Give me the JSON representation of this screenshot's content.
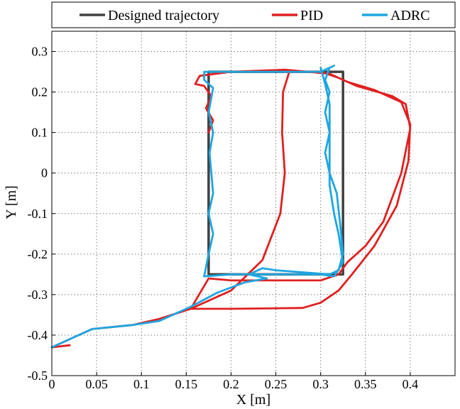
{
  "chart_data": {
    "type": "line",
    "xlabel": "X [m]",
    "ylabel": "Y [m]",
    "xlim": [
      0,
      0.45
    ],
    "ylim": [
      -0.5,
      0.35
    ],
    "xticks": [
      "0",
      "0.05",
      "0.1",
      "0.15",
      "0.2",
      "0.25",
      "0.3",
      "0.35",
      "0.4"
    ],
    "xtick_values": [
      0,
      0.05,
      0.1,
      0.15,
      0.2,
      0.25,
      0.3,
      0.35,
      0.4
    ],
    "yticks": [
      "0.3",
      "0.2",
      "0.1",
      "0",
      "-0.1",
      "-0.2",
      "-0.3",
      "-0.4",
      "-0.5"
    ],
    "ytick_values": [
      0.3,
      0.2,
      0.1,
      0,
      -0.1,
      -0.2,
      -0.3,
      -0.4,
      -0.5
    ],
    "grid": true,
    "legend_position": "top",
    "series": [
      {
        "name": "Designed trajectory",
        "color": "#404040",
        "points": [
          [
            0.175,
            0.25
          ],
          [
            0.325,
            0.25
          ],
          [
            0.325,
            -0.25
          ],
          [
            0.175,
            -0.25
          ],
          [
            0.175,
            0.25
          ]
        ]
      },
      {
        "name": "PID",
        "color": "#e02020",
        "points": [
          [
            0.02,
            -0.425
          ],
          [
            0.0,
            -0.43
          ],
          [
            0.02,
            -0.41
          ],
          [
            0.045,
            -0.385
          ],
          [
            0.09,
            -0.375
          ],
          [
            0.12,
            -0.36
          ],
          [
            0.155,
            -0.335
          ],
          [
            0.2,
            -0.29
          ],
          [
            0.235,
            -0.215
          ],
          [
            0.255,
            -0.1
          ],
          [
            0.26,
            0.0
          ],
          [
            0.257,
            0.1
          ],
          [
            0.258,
            0.2
          ],
          [
            0.265,
            0.25
          ],
          [
            0.3,
            0.25
          ],
          [
            0.32,
            0.235
          ],
          [
            0.34,
            0.215
          ],
          [
            0.38,
            0.19
          ],
          [
            0.395,
            0.17
          ],
          [
            0.4,
            0.11
          ],
          [
            0.39,
            0.0
          ],
          [
            0.37,
            -0.12
          ],
          [
            0.35,
            -0.18
          ],
          [
            0.33,
            -0.22
          ],
          [
            0.32,
            -0.25
          ],
          [
            0.3,
            -0.265
          ],
          [
            0.25,
            -0.265
          ],
          [
            0.2,
            -0.265
          ],
          [
            0.175,
            -0.26
          ],
          [
            0.155,
            -0.335
          ],
          [
            0.2,
            -0.335
          ],
          [
            0.28,
            -0.333
          ],
          [
            0.3,
            -0.32
          ],
          [
            0.32,
            -0.29
          ],
          [
            0.335,
            -0.25
          ],
          [
            0.36,
            -0.18
          ],
          [
            0.385,
            -0.08
          ],
          [
            0.398,
            0.03
          ],
          [
            0.4,
            0.12
          ],
          [
            0.39,
            0.175
          ],
          [
            0.36,
            0.205
          ],
          [
            0.33,
            0.225
          ],
          [
            0.31,
            0.245
          ],
          [
            0.26,
            0.255
          ],
          [
            0.2,
            0.25
          ],
          [
            0.165,
            0.24
          ],
          [
            0.16,
            0.22
          ],
          [
            0.17,
            0.215
          ],
          [
            0.178,
            0.19
          ],
          [
            0.172,
            0.16
          ],
          [
            0.18,
            0.13
          ],
          [
            0.175,
            0.1
          ]
        ]
      },
      {
        "name": "ADRC",
        "color": "#1ea6e0",
        "points": [
          [
            0.0,
            -0.43
          ],
          [
            0.02,
            -0.41
          ],
          [
            0.045,
            -0.385
          ],
          [
            0.09,
            -0.375
          ],
          [
            0.12,
            -0.365
          ],
          [
            0.155,
            -0.33
          ],
          [
            0.185,
            -0.295
          ],
          [
            0.215,
            -0.27
          ],
          [
            0.24,
            -0.26
          ],
          [
            0.22,
            -0.25
          ],
          [
            0.235,
            -0.235
          ],
          [
            0.25,
            -0.24
          ],
          [
            0.28,
            -0.245
          ],
          [
            0.31,
            -0.25
          ],
          [
            0.32,
            -0.24
          ],
          [
            0.325,
            -0.2
          ],
          [
            0.322,
            -0.13
          ],
          [
            0.318,
            -0.05
          ],
          [
            0.31,
            0.0
          ],
          [
            0.305,
            0.05
          ],
          [
            0.31,
            0.1
          ],
          [
            0.305,
            0.15
          ],
          [
            0.31,
            0.2
          ],
          [
            0.305,
            0.23
          ],
          [
            0.31,
            0.26
          ],
          [
            0.315,
            0.265
          ],
          [
            0.3,
            0.25
          ],
          [
            0.25,
            0.25
          ],
          [
            0.2,
            0.25
          ],
          [
            0.17,
            0.25
          ],
          [
            0.17,
            0.23
          ],
          [
            0.18,
            0.21
          ],
          [
            0.175,
            0.15
          ],
          [
            0.18,
            0.1
          ],
          [
            0.176,
            0.05
          ],
          [
            0.178,
            0.0
          ],
          [
            0.18,
            -0.05
          ],
          [
            0.175,
            -0.1
          ],
          [
            0.18,
            -0.15
          ],
          [
            0.175,
            -0.2
          ],
          [
            0.17,
            -0.255
          ],
          [
            0.2,
            -0.25
          ],
          [
            0.25,
            -0.25
          ],
          [
            0.3,
            -0.25
          ],
          [
            0.315,
            -0.255
          ],
          [
            0.325,
            -0.22
          ],
          [
            0.32,
            -0.15
          ],
          [
            0.315,
            -0.1
          ],
          [
            0.31,
            -0.03
          ],
          [
            0.31,
            0.03
          ],
          [
            0.31,
            0.1
          ],
          [
            0.31,
            0.17
          ],
          [
            0.305,
            0.22
          ],
          [
            0.3,
            0.26
          ]
        ]
      }
    ]
  }
}
